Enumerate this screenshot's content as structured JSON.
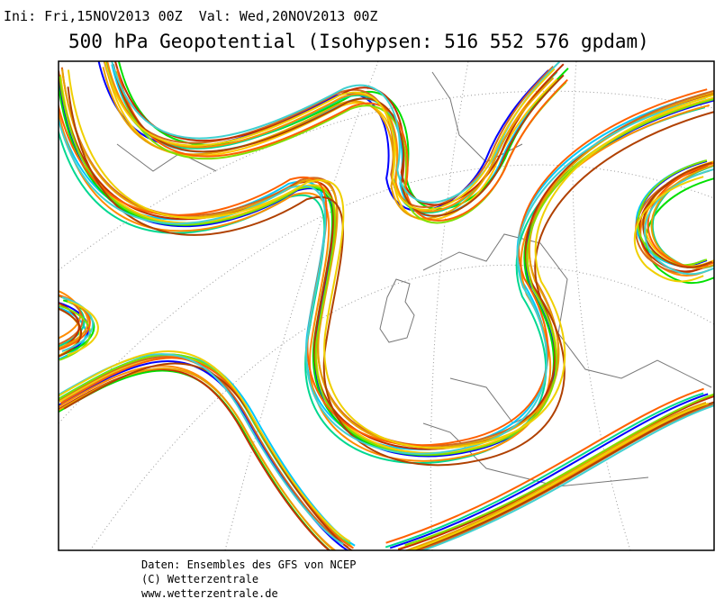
{
  "header": {
    "run": "Ini: Fri,15NOV2013 00Z  Val: Wed,20NOV2013 00Z",
    "title": "500 hPa Geopotential (Isohypsen: 516 552 576 gpdam)"
  },
  "footer": {
    "lines": [
      "Daten: Ensembles des GFS von NCEP",
      "(C) Wetterzentrale",
      "www.wetterzentrale.de"
    ]
  }
}
